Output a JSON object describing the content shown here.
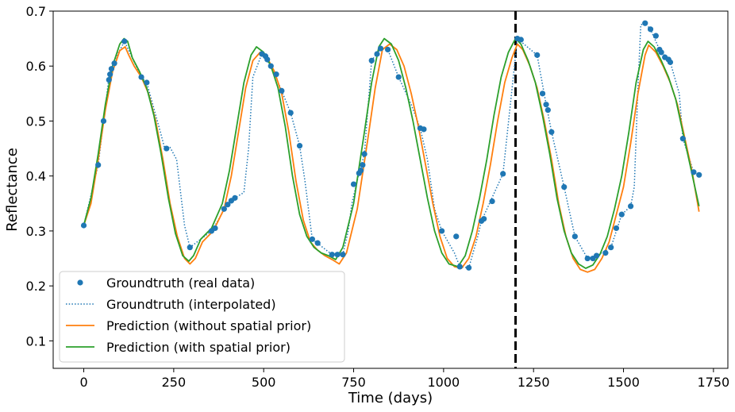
{
  "chart_data": {
    "type": "line",
    "title": "",
    "xlabel": "Time (days)",
    "ylabel": "Reflectance",
    "xlim": [
      -85,
      1790
    ],
    "ylim": [
      0.05,
      0.7
    ],
    "xticks": [
      0,
      250,
      500,
      750,
      1000,
      1250,
      1500,
      1750
    ],
    "yticks": [
      0.1,
      0.2,
      0.3,
      0.4,
      0.5,
      0.6,
      0.7
    ],
    "grid": false,
    "legend_position": "lower-left",
    "annotations": [
      {
        "type": "vertical-dashed-line",
        "x": 1200,
        "color": "#000000"
      }
    ],
    "series": [
      {
        "name": "Groundtruth (real data)",
        "style": "points",
        "color": "#1f77b4",
        "x": [
          0,
          40,
          55,
          70,
          73,
          77,
          85,
          113,
          160,
          175,
          230,
          295,
          355,
          365,
          390,
          400,
          410,
          420,
          495,
          505,
          510,
          520,
          535,
          550,
          575,
          600,
          635,
          650,
          690,
          705,
          720,
          750,
          765,
          770,
          775,
          780,
          800,
          815,
          825,
          845,
          875,
          935,
          945,
          995,
          1035,
          1045,
          1070,
          1105,
          1112,
          1135,
          1165,
          1205,
          1215,
          1260,
          1275,
          1285,
          1290,
          1300,
          1335,
          1365,
          1400,
          1415,
          1425,
          1450,
          1465,
          1480,
          1495,
          1520,
          1560,
          1575,
          1590,
          1600,
          1605,
          1615,
          1625,
          1630,
          1665,
          1695,
          1710
        ],
        "y": [
          0.31,
          0.42,
          0.5,
          0.575,
          0.585,
          0.595,
          0.605,
          0.645,
          0.58,
          0.57,
          0.45,
          0.27,
          0.3,
          0.305,
          0.34,
          0.348,
          0.355,
          0.36,
          0.622,
          0.618,
          0.612,
          0.6,
          0.585,
          0.555,
          0.515,
          0.455,
          0.285,
          0.278,
          0.257,
          0.257,
          0.257,
          0.385,
          0.405,
          0.41,
          0.42,
          0.44,
          0.61,
          0.622,
          0.632,
          0.63,
          0.58,
          0.487,
          0.485,
          0.3,
          0.29,
          0.235,
          0.233,
          0.318,
          0.322,
          0.354,
          0.404,
          0.65,
          0.648,
          0.62,
          0.55,
          0.53,
          0.52,
          0.48,
          0.38,
          0.29,
          0.25,
          0.25,
          0.255,
          0.26,
          0.27,
          0.305,
          0.33,
          0.345,
          0.678,
          0.667,
          0.655,
          0.63,
          0.625,
          0.616,
          0.612,
          0.607,
          0.468,
          0.407,
          0.402
        ]
      },
      {
        "name": "Groundtruth (interpolated)",
        "style": "dotted",
        "color": "#1f77b4",
        "x": [
          0,
          40,
          55,
          70,
          85,
          113,
          160,
          175,
          215,
          225,
          232,
          240,
          258,
          280,
          295,
          355,
          365,
          400,
          420,
          445,
          458,
          470,
          495,
          520,
          550,
          575,
          600,
          615,
          635,
          690,
          720,
          735,
          745,
          765,
          780,
          800,
          825,
          845,
          875,
          910,
          935,
          955,
          975,
          995,
          1030,
          1045,
          1070,
          1095,
          1105,
          1165,
          1205,
          1260,
          1285,
          1300,
          1335,
          1365,
          1400,
          1425,
          1465,
          1495,
          1520,
          1530,
          1540,
          1548,
          1560,
          1575,
          1600,
          1630,
          1655,
          1665,
          1695,
          1710
        ],
        "y": [
          0.31,
          0.42,
          0.5,
          0.58,
          0.61,
          0.645,
          0.58,
          0.57,
          0.475,
          0.45,
          0.448,
          0.452,
          0.43,
          0.31,
          0.27,
          0.3,
          0.31,
          0.35,
          0.36,
          0.37,
          0.45,
          0.58,
          0.622,
          0.6,
          0.555,
          0.515,
          0.455,
          0.39,
          0.285,
          0.257,
          0.257,
          0.3,
          0.35,
          0.405,
          0.44,
          0.61,
          0.632,
          0.63,
          0.58,
          0.53,
          0.487,
          0.43,
          0.34,
          0.3,
          0.26,
          0.235,
          0.233,
          0.29,
          0.318,
          0.404,
          0.65,
          0.62,
          0.53,
          0.48,
          0.38,
          0.29,
          0.25,
          0.255,
          0.27,
          0.33,
          0.345,
          0.38,
          0.56,
          0.675,
          0.678,
          0.667,
          0.63,
          0.607,
          0.55,
          0.468,
          0.407,
          0.402
        ]
      },
      {
        "name": "Prediction (without spatial prior)",
        "style": "line",
        "color": "#ff7f0e",
        "x": [
          0,
          20,
          40,
          60,
          80,
          100,
          115,
          125,
          140,
          160,
          180,
          200,
          220,
          240,
          260,
          280,
          295,
          310,
          330,
          360,
          390,
          410,
          430,
          450,
          470,
          490,
          510,
          530,
          550,
          570,
          590,
          610,
          630,
          650,
          670,
          690,
          710,
          730,
          760,
          790,
          810,
          830,
          850,
          870,
          890,
          910,
          930,
          950,
          970,
          990,
          1010,
          1030,
          1050,
          1070,
          1090,
          1110,
          1130,
          1150,
          1170,
          1190,
          1205,
          1220,
          1240,
          1260,
          1280,
          1300,
          1320,
          1340,
          1360,
          1380,
          1400,
          1420,
          1440,
          1460,
          1480,
          1500,
          1520,
          1540,
          1560,
          1570,
          1590,
          1610,
          1630,
          1650,
          1670,
          1690,
          1710
        ],
        "y": [
          0.31,
          0.35,
          0.43,
          0.52,
          0.59,
          0.628,
          0.635,
          0.62,
          0.6,
          0.58,
          0.55,
          0.5,
          0.43,
          0.35,
          0.29,
          0.25,
          0.24,
          0.25,
          0.28,
          0.3,
          0.34,
          0.4,
          0.48,
          0.56,
          0.61,
          0.625,
          0.615,
          0.59,
          0.55,
          0.48,
          0.39,
          0.32,
          0.28,
          0.265,
          0.255,
          0.248,
          0.24,
          0.26,
          0.34,
          0.47,
          0.56,
          0.63,
          0.64,
          0.63,
          0.6,
          0.55,
          0.49,
          0.42,
          0.35,
          0.29,
          0.25,
          0.235,
          0.232,
          0.25,
          0.29,
          0.35,
          0.42,
          0.5,
          0.57,
          0.615,
          0.64,
          0.63,
          0.6,
          0.56,
          0.5,
          0.43,
          0.35,
          0.29,
          0.25,
          0.23,
          0.225,
          0.23,
          0.25,
          0.28,
          0.33,
          0.38,
          0.46,
          0.55,
          0.62,
          0.638,
          0.625,
          0.6,
          0.57,
          0.53,
          0.47,
          0.41,
          0.335
        ]
      },
      {
        "name": "Prediction (with spatial prior)",
        "style": "line",
        "color": "#2ca02c",
        "x": [
          0,
          20,
          40,
          60,
          80,
          100,
          112,
          122,
          135,
          155,
          175,
          195,
          215,
          235,
          255,
          275,
          292,
          305,
          325,
          355,
          385,
          405,
          425,
          445,
          465,
          480,
          500,
          520,
          540,
          560,
          580,
          600,
          620,
          640,
          660,
          680,
          700,
          720,
          750,
          780,
          800,
          820,
          835,
          855,
          875,
          895,
          915,
          935,
          955,
          975,
          995,
          1015,
          1040,
          1060,
          1080,
          1100,
          1120,
          1140,
          1160,
          1180,
          1200,
          1215,
          1235,
          1255,
          1275,
          1295,
          1315,
          1335,
          1355,
          1375,
          1395,
          1415,
          1435,
          1455,
          1475,
          1495,
          1515,
          1535,
          1555,
          1568,
          1585,
          1605,
          1625,
          1645,
          1665,
          1685,
          1710
        ],
        "y": [
          0.31,
          0.36,
          0.44,
          0.53,
          0.6,
          0.64,
          0.65,
          0.645,
          0.615,
          0.59,
          0.56,
          0.51,
          0.44,
          0.36,
          0.295,
          0.255,
          0.245,
          0.255,
          0.285,
          0.305,
          0.35,
          0.41,
          0.49,
          0.57,
          0.62,
          0.635,
          0.625,
          0.6,
          0.56,
          0.49,
          0.4,
          0.33,
          0.29,
          0.27,
          0.26,
          0.255,
          0.248,
          0.27,
          0.35,
          0.48,
          0.57,
          0.635,
          0.65,
          0.64,
          0.61,
          0.56,
          0.5,
          0.43,
          0.36,
          0.3,
          0.26,
          0.24,
          0.235,
          0.255,
          0.3,
          0.36,
          0.43,
          0.51,
          0.58,
          0.625,
          0.65,
          0.64,
          0.61,
          0.57,
          0.51,
          0.44,
          0.36,
          0.3,
          0.26,
          0.24,
          0.232,
          0.238,
          0.258,
          0.29,
          0.34,
          0.4,
          0.48,
          0.57,
          0.63,
          0.645,
          0.635,
          0.61,
          0.58,
          0.54,
          0.48,
          0.42,
          0.345
        ]
      }
    ]
  }
}
